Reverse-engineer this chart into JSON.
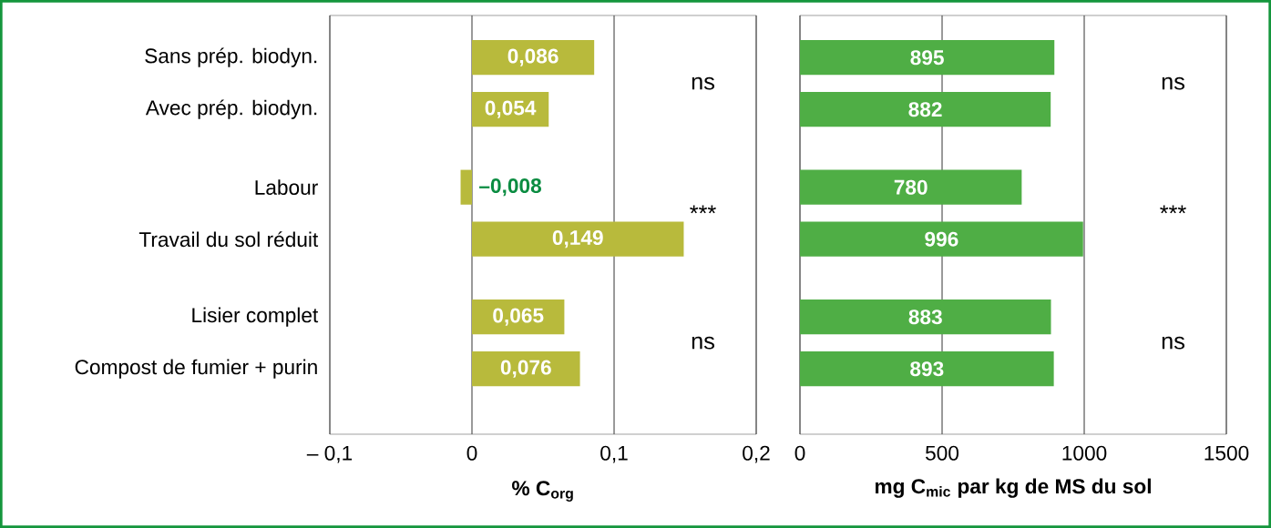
{
  "chart_data": [
    {
      "type": "bar",
      "orientation": "horizontal",
      "categories": [
        "Sans prép. biodyn.",
        "Avec prép. biodyn.",
        "Labour",
        "Travail du sol réduit",
        "Lisier complet",
        "Compost de fumier + purin"
      ],
      "values": [
        0.086,
        0.054,
        -0.008,
        0.149,
        0.065,
        0.076
      ],
      "value_labels": [
        "0,086",
        "0,054",
        "–0,008",
        "0,149",
        "0,065",
        "0,076"
      ],
      "color": "#b8ba3c",
      "xlim": [
        -0.1,
        0.2
      ],
      "xticks": [
        {
          "value": -0.1,
          "label": "– 0,1"
        },
        0,
        {
          "value": 0.1,
          "label": "0,1"
        },
        {
          "value": 0.2,
          "label": "0,2"
        }
      ],
      "xlabel": "% C$_{org}$",
      "grid": "x",
      "annotations": [
        "ns",
        "***",
        "ns"
      ]
    },
    {
      "type": "bar",
      "orientation": "horizontal",
      "categories": [
        null,
        null,
        null,
        null,
        null,
        null
      ],
      "values": [
        895,
        882,
        780,
        996,
        883,
        893
      ],
      "value_labels": [
        "895",
        "882",
        "780",
        "996",
        "883",
        "893"
      ],
      "color": "#4fae45",
      "xlim": [
        0,
        1500
      ],
      "xticks": [
        0,
        500,
        1000,
        1500
      ],
      "xlabel": "mg C$_{mic}$ par kg de MS du sol",
      "grid": "x",
      "annotations": [
        "ns",
        "***",
        "ns"
      ]
    }
  ]
}
